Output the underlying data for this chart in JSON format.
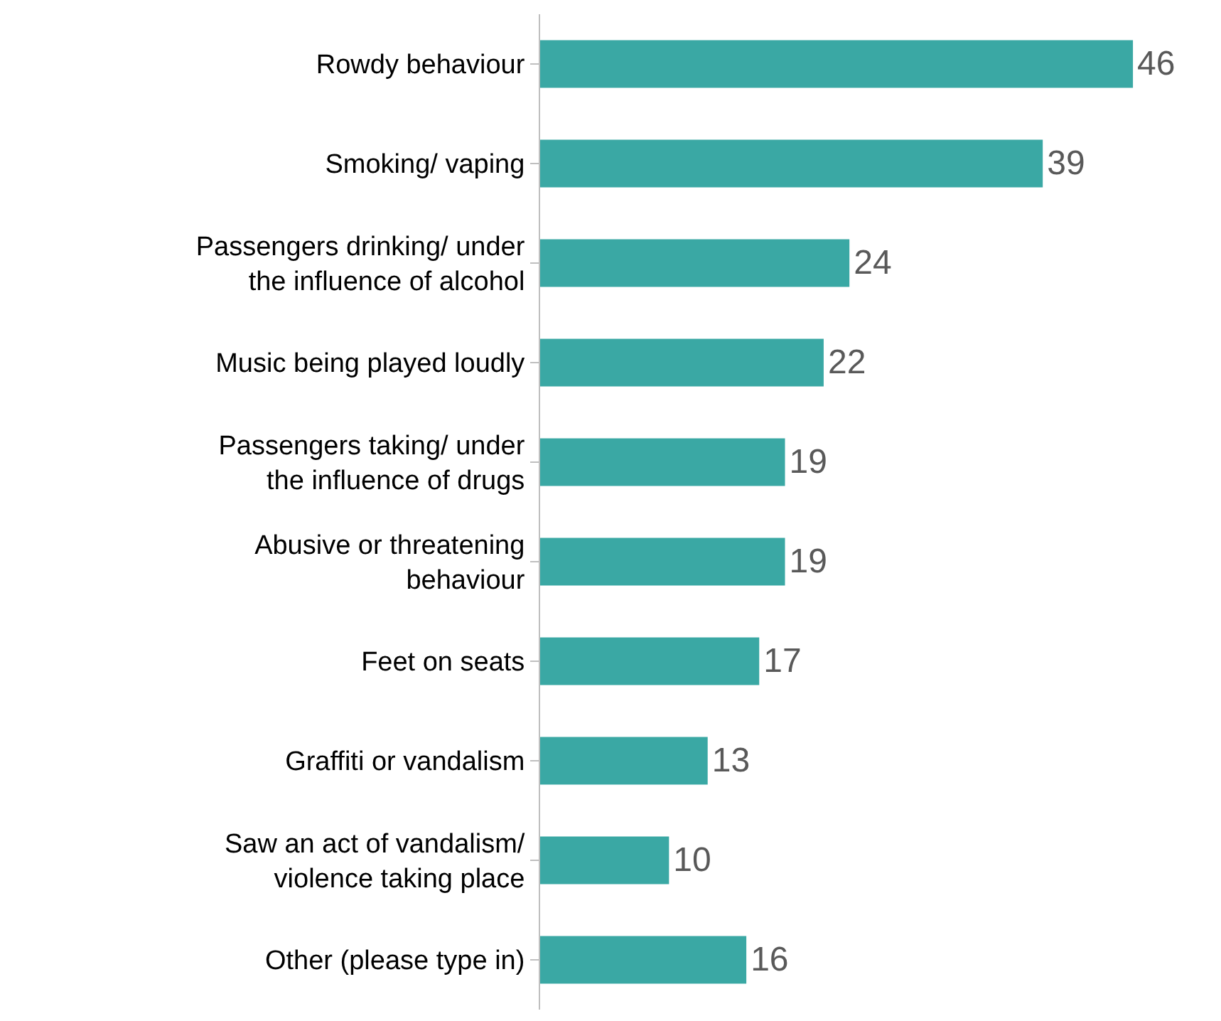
{
  "chart_data": {
    "type": "bar",
    "orientation": "horizontal",
    "categories": [
      "Rowdy behaviour",
      "Smoking/ vaping",
      "Passengers drinking/ under\nthe influence of alcohol",
      "Music being played loudly",
      "Passengers taking/ under\nthe influence of drugs",
      "Abusive or threatening\nbehaviour",
      "Feet on seats",
      "Graffiti or vandalism",
      "Saw an act of vandalism/\nviolence taking place",
      "Other (please type in)"
    ],
    "values": [
      46,
      39,
      24,
      22,
      19,
      19,
      17,
      13,
      10,
      16
    ],
    "color": "#3aa8a4",
    "data_labels": true,
    "tick_labels": "y"
  }
}
